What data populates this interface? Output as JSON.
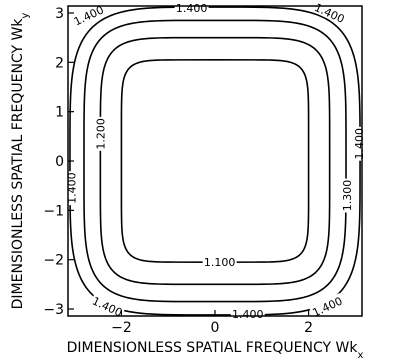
{
  "chart_data": {
    "type": "contour",
    "title": "",
    "xlabel": "DIMENSIONLESS SPATIAL FREQUENCY Wk",
    "xlabel_subscript": "x",
    "ylabel": "DIMENSIONLESS SPATIAL FREQUENCY Wk",
    "ylabel_subscript": "y",
    "xlim": [
      -3.14159,
      3.14159
    ],
    "ylim": [
      -3.14159,
      3.14159
    ],
    "xticks": [
      -2,
      0,
      2
    ],
    "xtick_labels": [
      "−2",
      "0",
      "2"
    ],
    "yticks": [
      -3,
      -2,
      -1,
      0,
      1,
      2,
      3
    ],
    "ytick_labels": [
      "−3",
      "−2",
      "−1",
      "0",
      "1",
      "2",
      "3"
    ],
    "grid": false,
    "levels": [
      {
        "value": 1.1,
        "label": "1.100",
        "half_x": 2.0,
        "half_y": 2.05,
        "n": 8
      },
      {
        "value": 1.2,
        "label": "1.200",
        "half_x": 2.45,
        "half_y": 2.5,
        "n": 6
      },
      {
        "value": 1.3,
        "label": "1.300",
        "half_x": 2.8,
        "half_y": 2.85,
        "n": 5
      },
      {
        "value": 1.4,
        "label": "1.400",
        "half_x": 3.1,
        "half_y": 3.12,
        "n": 4.5
      }
    ],
    "contour_labels": [
      {
        "text": "1.100",
        "x": 0.1,
        "y": -2.05,
        "angle": 0
      },
      {
        "text": "1.200",
        "x": -2.45,
        "y": 0.55,
        "angle": 90
      },
      {
        "text": "1.300",
        "x": 2.82,
        "y": -0.7,
        "angle": 90
      },
      {
        "text": "1.400",
        "x": -0.5,
        "y": 3.1,
        "angle": 0
      },
      {
        "text": "1.400",
        "x": -2.7,
        "y": 2.95,
        "angle": 25
      },
      {
        "text": "1.400",
        "x": 2.45,
        "y": 3.0,
        "angle": -25
      },
      {
        "text": "1.400",
        "x": -2.3,
        "y": -2.95,
        "angle": -25
      },
      {
        "text": "1.400",
        "x": 0.7,
        "y": -3.1,
        "angle": 0
      },
      {
        "text": "1.400",
        "x": 2.4,
        "y": -2.95,
        "angle": 25
      },
      {
        "text": "1.400",
        "x": -3.07,
        "y": -0.55,
        "angle": 90
      },
      {
        "text": "1.400",
        "x": 3.08,
        "y": 0.35,
        "angle": 90
      }
    ]
  }
}
